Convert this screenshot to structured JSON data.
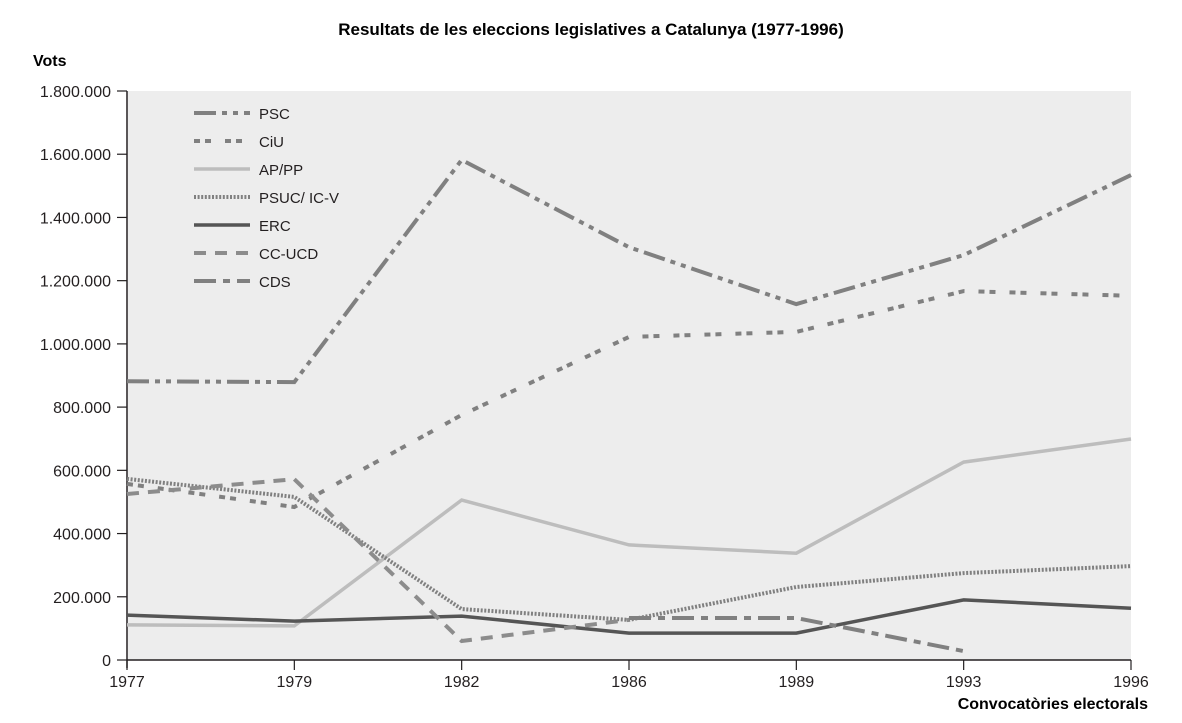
{
  "chart_data": {
    "type": "line",
    "title": "Resultats de les eleccions legislatives a Catalunya (1977-1996)",
    "xlabel": "Convocatòries electorals",
    "ylabel": "Vots",
    "categories": [
      "1977",
      "1979",
      "1982",
      "1986",
      "1989",
      "1993",
      "1996"
    ],
    "ylim": [
      0,
      1800000
    ],
    "yticks": [
      0,
      200000,
      400000,
      600000,
      800000,
      1000000,
      1200000,
      1400000,
      1600000,
      1800000
    ],
    "ytick_labels": [
      "0",
      "200.000",
      "400.000",
      "600.000",
      "800.000",
      "1.000.000",
      "1.200.000",
      "1.400.000",
      "1.600.000",
      "1.800.000"
    ],
    "grid": false,
    "legend_position": "top-left",
    "background": "#ededed",
    "series": [
      {
        "name": "PSC",
        "style": "dash-dot-dot",
        "color": "#808080",
        "values": [
          882000,
          879000,
          1582000,
          1306000,
          1126000,
          1281000,
          1534000
        ]
      },
      {
        "name": "CiU",
        "style": "sparse-dot",
        "color": "#808080",
        "values": [
          557000,
          484000,
          775000,
          1022000,
          1038000,
          1167000,
          1152000
        ]
      },
      {
        "name": "AP/PP",
        "style": "solid",
        "color": "#bdbdbd",
        "values": [
          111000,
          108000,
          506000,
          364000,
          338000,
          626000,
          699000
        ]
      },
      {
        "name": "PSUC/ IC-V",
        "style": "dotted",
        "color": "#808080",
        "values": [
          573000,
          516000,
          161000,
          127000,
          231000,
          275000,
          297000
        ]
      },
      {
        "name": "ERC",
        "style": "solid",
        "color": "#555555",
        "values": [
          142000,
          123000,
          139000,
          85000,
          85000,
          190000,
          164000
        ]
      },
      {
        "name": "CC-UCD",
        "style": "dashed",
        "color": "#8c8c8c",
        "values": [
          525000,
          572000,
          60000,
          127000,
          null,
          null,
          null
        ]
      },
      {
        "name": "CDS",
        "style": "dash-dot",
        "color": "#808080",
        "values": [
          null,
          null,
          null,
          133000,
          133000,
          28000,
          null
        ]
      }
    ]
  },
  "legend_labels": [
    "PSC",
    "CiU",
    "AP/PP",
    "PSUC/ IC-V",
    "ERC",
    "CC-UCD",
    "CDS"
  ]
}
